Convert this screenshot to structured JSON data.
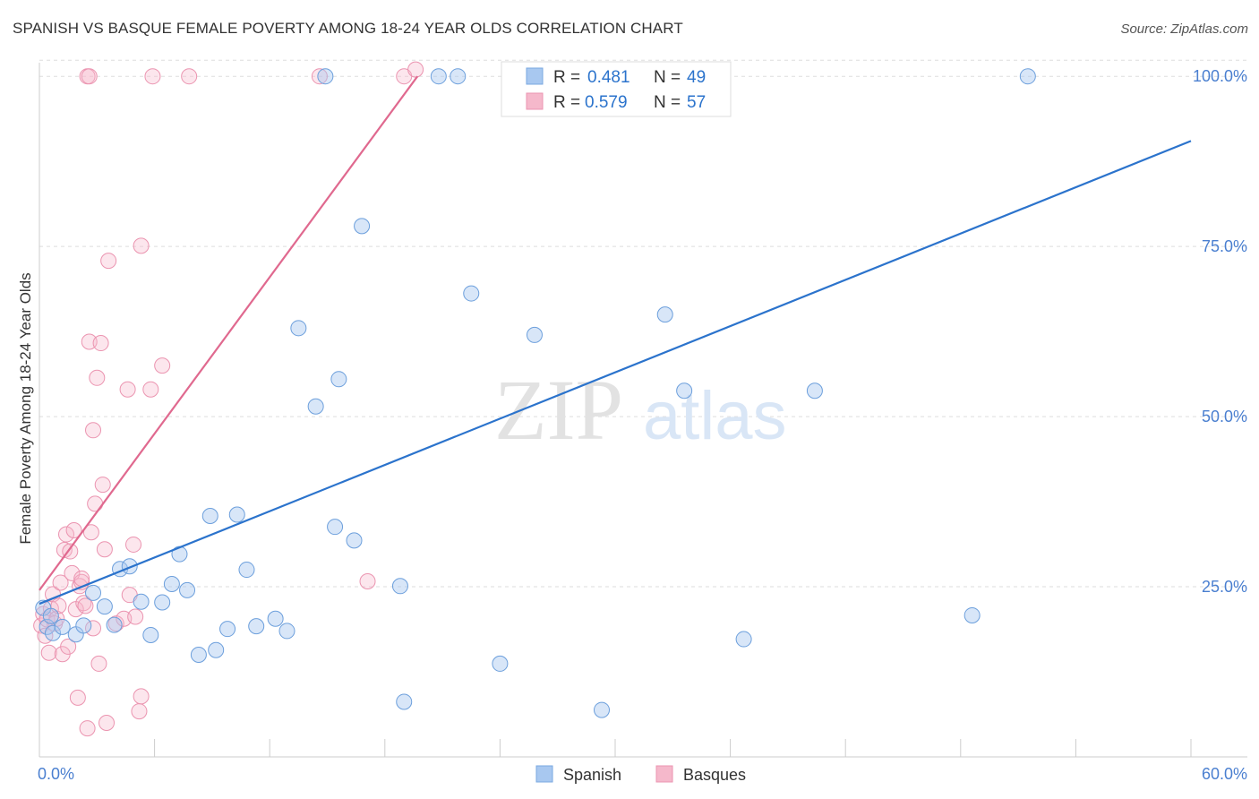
{
  "header": {
    "title": "SPANISH VS BASQUE FEMALE POVERTY AMONG 18-24 YEAR OLDS CORRELATION CHART",
    "source": "Source: ZipAtlas.com"
  },
  "watermark": {
    "zip": "ZIP",
    "atlas": "atlas"
  },
  "legend": {
    "r_label": "R =",
    "n_label": "N =",
    "spanish": {
      "r": "0.481",
      "n": "49"
    },
    "basques": {
      "r": "0.579",
      "n": "57"
    }
  },
  "colors": {
    "spanish_fill": "#a8c8f0",
    "spanish_line": "#2b73cc",
    "basques_fill": "#f5b8cb",
    "basques_line": "#e0698f",
    "tick_label": "#4a7fd0",
    "grid": "#dddddd"
  },
  "chart_data": {
    "type": "scatter",
    "title": "SPANISH VS BASQUE FEMALE POVERTY AMONG 18-24 YEAR OLDS CORRELATION CHART",
    "xlabel": "",
    "ylabel": "Female Poverty Among 18-24 Year Olds",
    "xlim": [
      0,
      60
    ],
    "ylim": [
      0,
      102
    ],
    "x_tick_labels": [
      {
        "value": 0,
        "label": "0.0%"
      },
      {
        "value": 60,
        "label": "60.0%"
      }
    ],
    "y_tick_labels": [
      {
        "value": 25,
        "label": "25.0%"
      },
      {
        "value": 50,
        "label": "50.0%"
      },
      {
        "value": 75,
        "label": "75.0%"
      },
      {
        "value": 100,
        "label": "100.0%"
      }
    ],
    "grid": true,
    "legend_position": "top-center",
    "bottom_legend": [
      "Spanish",
      "Basques"
    ],
    "series": [
      {
        "name": "Spanish",
        "color": "#a8c8f0",
        "trend": {
          "x": [
            0,
            60
          ],
          "y": [
            22.5,
            90.5
          ]
        },
        "points": [
          [
            0.2,
            21.9
          ],
          [
            0.4,
            19.1
          ],
          [
            0.6,
            20.7
          ],
          [
            0.7,
            18.2
          ],
          [
            1.2,
            19.1
          ],
          [
            1.9,
            18.0
          ],
          [
            2.3,
            19.3
          ],
          [
            2.8,
            24.1
          ],
          [
            3.4,
            22.1
          ],
          [
            3.9,
            19.4
          ],
          [
            4.2,
            27.6
          ],
          [
            4.7,
            28.0
          ],
          [
            5.3,
            22.8
          ],
          [
            5.8,
            17.9
          ],
          [
            6.4,
            22.7
          ],
          [
            6.9,
            25.4
          ],
          [
            7.3,
            29.8
          ],
          [
            7.7,
            24.5
          ],
          [
            8.3,
            15.0
          ],
          [
            8.9,
            35.4
          ],
          [
            9.2,
            15.7
          ],
          [
            9.8,
            18.8
          ],
          [
            10.3,
            35.6
          ],
          [
            10.8,
            27.5
          ],
          [
            11.3,
            19.2
          ],
          [
            12.3,
            20.3
          ],
          [
            12.9,
            18.5
          ],
          [
            13.5,
            63.0
          ],
          [
            14.4,
            51.5
          ],
          [
            14.9,
            100.0
          ],
          [
            15.4,
            33.8
          ],
          [
            15.6,
            55.5
          ],
          [
            16.4,
            31.8
          ],
          [
            16.8,
            78.0
          ],
          [
            18.8,
            25.1
          ],
          [
            19.0,
            8.1
          ],
          [
            20.8,
            100.0
          ],
          [
            21.8,
            100.0
          ],
          [
            22.5,
            68.1
          ],
          [
            24.0,
            13.7
          ],
          [
            25.8,
            62.0
          ],
          [
            28.2,
            100.0
          ],
          [
            29.3,
            6.9
          ],
          [
            32.6,
            65.0
          ],
          [
            33.6,
            53.8
          ],
          [
            36.7,
            17.3
          ],
          [
            40.4,
            53.8
          ],
          [
            48.6,
            20.8
          ],
          [
            51.5,
            100.0
          ]
        ]
      },
      {
        "name": "Basques",
        "color": "#f5b8cb",
        "trend": {
          "x": [
            0,
            19.7
          ],
          "y": [
            24.5,
            100.0
          ]
        },
        "points": [
          [
            0.1,
            19.3
          ],
          [
            0.2,
            21.0
          ],
          [
            0.3,
            17.8
          ],
          [
            0.4,
            20.2
          ],
          [
            0.5,
            15.3
          ],
          [
            0.6,
            21.8
          ],
          [
            0.7,
            23.9
          ],
          [
            0.8,
            19.6
          ],
          [
            0.9,
            20.3
          ],
          [
            1.0,
            22.2
          ],
          [
            1.1,
            25.6
          ],
          [
            1.2,
            15.1
          ],
          [
            1.3,
            30.4
          ],
          [
            1.4,
            32.7
          ],
          [
            1.5,
            16.2
          ],
          [
            1.6,
            30.2
          ],
          [
            1.7,
            27.0
          ],
          [
            1.8,
            33.3
          ],
          [
            1.9,
            21.7
          ],
          [
            2.0,
            8.7
          ],
          [
            2.1,
            25.1
          ],
          [
            2.2,
            25.7
          ],
          [
            2.2,
            26.2
          ],
          [
            2.3,
            22.6
          ],
          [
            2.4,
            22.2
          ],
          [
            2.5,
            4.2
          ],
          [
            2.5,
            100.0
          ],
          [
            2.6,
            61.0
          ],
          [
            2.6,
            100.0
          ],
          [
            2.7,
            33.0
          ],
          [
            2.8,
            48.0
          ],
          [
            2.8,
            18.9
          ],
          [
            2.9,
            37.2
          ],
          [
            3.0,
            55.7
          ],
          [
            3.1,
            13.7
          ],
          [
            3.2,
            60.8
          ],
          [
            3.3,
            40.0
          ],
          [
            3.4,
            30.5
          ],
          [
            3.5,
            5.0
          ],
          [
            3.6,
            72.9
          ],
          [
            4.0,
            19.6
          ],
          [
            4.4,
            20.3
          ],
          [
            4.6,
            54.0
          ],
          [
            4.7,
            23.8
          ],
          [
            4.9,
            31.2
          ],
          [
            5.0,
            20.6
          ],
          [
            5.2,
            6.7
          ],
          [
            5.3,
            8.9
          ],
          [
            5.3,
            75.1
          ],
          [
            5.8,
            54.0
          ],
          [
            5.9,
            100.0
          ],
          [
            6.4,
            57.5
          ],
          [
            7.8,
            100.0
          ],
          [
            14.6,
            100.0
          ],
          [
            17.1,
            25.8
          ],
          [
            19.0,
            100.0
          ],
          [
            19.6,
            101.0
          ]
        ]
      }
    ]
  }
}
